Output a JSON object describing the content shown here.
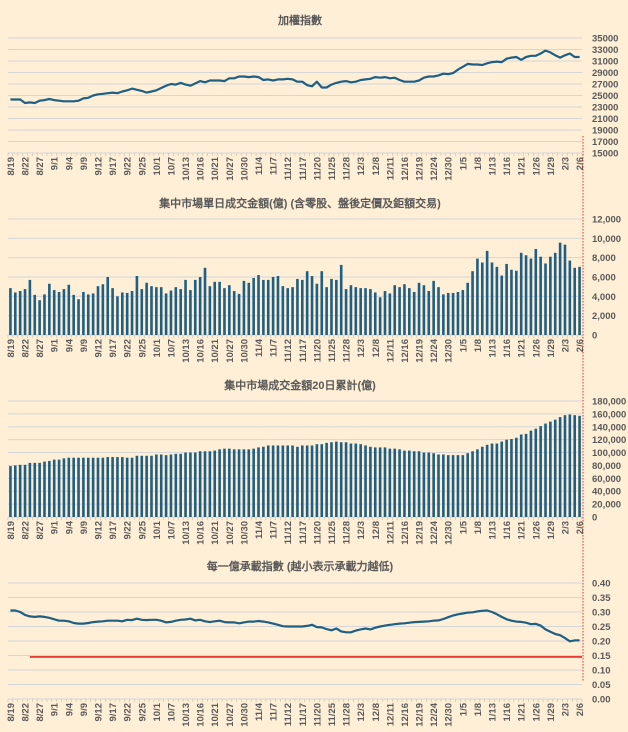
{
  "chart_data": [
    {
      "type": "line",
      "title": "加權指數",
      "color": "#1F5F84",
      "ylim": [
        15000,
        35000
      ],
      "yticks": [
        "15000",
        "17000",
        "19000",
        "21000",
        "23000",
        "25000",
        "27000",
        "29000",
        "31000",
        "33000",
        "35000"
      ],
      "values": [
        24300,
        24300,
        24300,
        23700,
        23800,
        23700,
        24100,
        24200,
        24400,
        24200,
        24100,
        24000,
        24000,
        24000,
        24100,
        24500,
        24600,
        25000,
        25200,
        25300,
        25400,
        25500,
        25400,
        25700,
        25900,
        26200,
        26000,
        25800,
        25500,
        25700,
        25900,
        26300,
        26700,
        27000,
        26900,
        27200,
        26900,
        26700,
        27100,
        27500,
        27300,
        27600,
        27600,
        27600,
        27500,
        28000,
        28000,
        28300,
        28300,
        28200,
        28300,
        28200,
        27700,
        27800,
        27600,
        27800,
        27800,
        27900,
        27800,
        27400,
        27400,
        26800,
        26600,
        27400,
        26400,
        26400,
        26900,
        27200,
        27400,
        27500,
        27300,
        27400,
        27700,
        27800,
        27900,
        28200,
        28100,
        28200,
        28000,
        28100,
        27700,
        27400,
        27400,
        27400,
        27600,
        28100,
        28300,
        28300,
        28500,
        28800,
        28700,
        28900,
        29500,
        30000,
        30500,
        30400,
        30400,
        30300,
        30600,
        30800,
        30900,
        30800,
        31400,
        31600,
        31700,
        31200,
        31700,
        31900,
        31900,
        32300,
        32800,
        32500,
        32000,
        31600,
        32000,
        32300,
        31700,
        31700
      ]
    },
    {
      "type": "bar",
      "title": "集中市場單日成交金額(億) (含零股、盤後定價及鉅額交易)",
      "color": "#1F5F84",
      "ylim": [
        0,
        12000
      ],
      "yticks": [
        "0",
        "2,000",
        "4,000",
        "6,000",
        "8,000",
        "10,000",
        "12,000"
      ],
      "values": [
        4850,
        4400,
        4550,
        4750,
        5700,
        4150,
        3600,
        4200,
        5300,
        4650,
        4450,
        4750,
        5200,
        4150,
        3700,
        4450,
        4200,
        4300,
        5050,
        5250,
        6000,
        4850,
        4000,
        4400,
        4350,
        4550,
        6100,
        4750,
        5400,
        5050,
        4950,
        4950,
        4300,
        4600,
        4950,
        4750,
        5700,
        4650,
        5700,
        6000,
        6950,
        5050,
        5500,
        5500,
        4850,
        5150,
        4550,
        4250,
        5600,
        5400,
        5900,
        6200,
        5700,
        5700,
        6000,
        6100,
        5050,
        4850,
        4950,
        5800,
        5700,
        6600,
        6100,
        5300,
        6600,
        4950,
        5800,
        5700,
        7250,
        4750,
        5150,
        4950,
        4850,
        4850,
        4750,
        4400,
        3900,
        4550,
        4300,
        5150,
        4950,
        5250,
        4850,
        4450,
        5400,
        5150,
        4550,
        5600,
        4950,
        4200,
        4350,
        4350,
        4450,
        4650,
        5400,
        6600,
        7900,
        7500,
        8700,
        7500,
        7050,
        6150,
        7350,
        6750,
        6650,
        8500,
        8250,
        7900,
        8900,
        8100,
        7400,
        8100,
        8500,
        9550,
        9350,
        7700,
        6950,
        7050
      ]
    },
    {
      "type": "bar",
      "title": "集中市場成交金額20日累計(億)",
      "color": "#1F5F84",
      "ylim": [
        0,
        180000
      ],
      "yticks": [
        "0",
        "20,000",
        "40,000",
        "60,000",
        "80,000",
        "100,000",
        "120,000",
        "140,000",
        "160,000",
        "180,000"
      ],
      "values": [
        79000,
        80000,
        81000,
        81000,
        84000,
        84000,
        84000,
        86000,
        87000,
        89000,
        89000,
        91000,
        92000,
        92000,
        92000,
        92000,
        92000,
        92000,
        92000,
        92000,
        93000,
        93000,
        93000,
        93000,
        92000,
        92000,
        95000,
        95000,
        95000,
        95000,
        97000,
        97000,
        96000,
        97000,
        98000,
        98000,
        100000,
        100000,
        100000,
        102000,
        102000,
        102000,
        103000,
        105000,
        106000,
        106000,
        105000,
        105000,
        105000,
        105000,
        106000,
        108000,
        109000,
        111000,
        111000,
        111000,
        111000,
        111000,
        111000,
        109000,
        111000,
        111000,
        111000,
        113000,
        113000,
        115000,
        116000,
        117000,
        116000,
        116000,
        114000,
        114000,
        113000,
        111000,
        109000,
        108000,
        108000,
        108000,
        106000,
        106000,
        105000,
        103000,
        103000,
        102000,
        102000,
        100000,
        100000,
        99000,
        97000,
        97000,
        96000,
        96000,
        96000,
        96000,
        99000,
        102000,
        105000,
        109000,
        112000,
        114000,
        114000,
        117000,
        120000,
        121000,
        123000,
        128000,
        129000,
        134000,
        137000,
        141000,
        145000,
        148000,
        151000,
        155000,
        158000,
        159000,
        158000,
        157000
      ]
    },
    {
      "type": "line",
      "title": "每一億承載指數 (越小表示承載力越低)",
      "color": "#1F5F84",
      "reference_line": {
        "value": 0.145,
        "color": "#E00000"
      },
      "ylim": [
        0,
        0.4
      ],
      "yticks": [
        "0.00",
        "0.05",
        "0.10",
        "0.15",
        "0.20",
        "0.25",
        "0.30",
        "0.35",
        "0.40"
      ],
      "values": [
        0.305,
        0.305,
        0.3,
        0.29,
        0.285,
        0.283,
        0.285,
        0.283,
        0.28,
        0.275,
        0.27,
        0.27,
        0.268,
        0.262,
        0.26,
        0.26,
        0.262,
        0.265,
        0.267,
        0.268,
        0.27,
        0.27,
        0.27,
        0.268,
        0.273,
        0.272,
        0.277,
        0.273,
        0.272,
        0.273,
        0.273,
        0.27,
        0.264,
        0.266,
        0.27,
        0.273,
        0.274,
        0.277,
        0.271,
        0.273,
        0.268,
        0.265,
        0.268,
        0.27,
        0.265,
        0.264,
        0.264,
        0.261,
        0.264,
        0.267,
        0.267,
        0.269,
        0.267,
        0.264,
        0.26,
        0.256,
        0.251,
        0.25,
        0.25,
        0.25,
        0.25,
        0.252,
        0.256,
        0.248,
        0.247,
        0.241,
        0.237,
        0.243,
        0.233,
        0.23,
        0.23,
        0.236,
        0.24,
        0.243,
        0.24,
        0.246,
        0.25,
        0.253,
        0.256,
        0.258,
        0.26,
        0.261,
        0.263,
        0.265,
        0.266,
        0.267,
        0.268,
        0.27,
        0.271,
        0.276,
        0.282,
        0.288,
        0.292,
        0.295,
        0.298,
        0.299,
        0.302,
        0.304,
        0.305,
        0.3,
        0.292,
        0.283,
        0.275,
        0.27,
        0.267,
        0.266,
        0.263,
        0.258,
        0.259,
        0.253,
        0.24,
        0.232,
        0.224,
        0.22,
        0.21,
        0.199,
        0.202,
        0.202
      ]
    }
  ],
  "x_labels": [
    "8/19",
    "8/22",
    "8/27",
    "9/1",
    "9/4",
    "9/9",
    "9/12",
    "9/17",
    "9/22",
    "9/25",
    "10/1",
    "10/7",
    "10/13",
    "10/16",
    "10/21",
    "10/27",
    "10/30",
    "11/4",
    "11/7",
    "11/12",
    "11/17",
    "11/20",
    "11/25",
    "11/28",
    "12/3",
    "12/8",
    "12/11",
    "12/16",
    "12/19",
    "12/24",
    "12/30",
    "1/5",
    "1/8",
    "1/13",
    "1/16",
    "1/21",
    "1/26",
    "1/29",
    "2/3",
    "2/6"
  ],
  "colors": {
    "background": "#FEEFD6",
    "grid": "#D6D6D6",
    "marker_line": "#E00000"
  }
}
